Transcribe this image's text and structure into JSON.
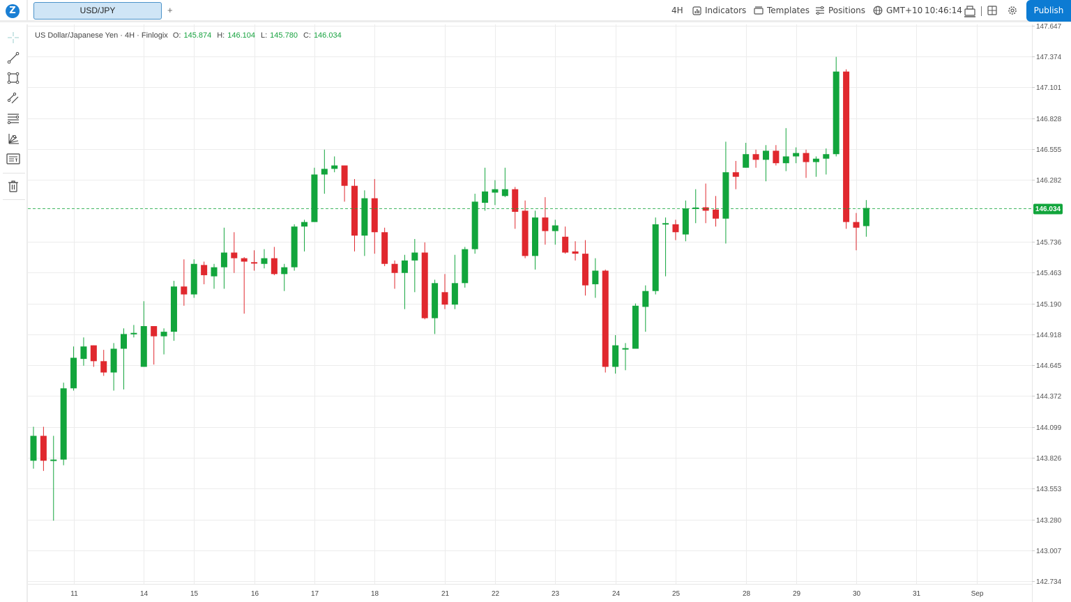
{
  "topbar": {
    "logo_letter": "Z",
    "active_tab": "USD/JPY",
    "add_tab": "+",
    "timeframe": "4H",
    "indicators": "Indicators",
    "templates": "Templates",
    "positions": "Positions",
    "timezone": "GMT+10",
    "clock": "10:46:14",
    "publish": "Publish"
  },
  "legend": {
    "title": "US Dollar/Japanese Yen · 4H · Finlogix",
    "o_label": "O:",
    "o": "145.874",
    "h_label": "H:",
    "h": "146.104",
    "l_label": "L:",
    "l": "145.780",
    "c_label": "C:",
    "c": "146.034"
  },
  "tools": [
    "crosshair-icon",
    "trend-line-icon",
    "rectangle-icon",
    "parallel-channel-icon",
    "fib-retracement-icon",
    "pitchfork-icon",
    "text-note-icon",
    "trash-icon"
  ],
  "colors": {
    "up": "#12a53c",
    "down": "#e0282e",
    "accent": "#0c7bd3"
  },
  "chart_data": {
    "type": "candlestick",
    "symbol": "USD/JPY",
    "interval": "4H",
    "ylim": [
      142.699,
      147.657
    ],
    "y_ticks": [
      "147.647",
      "147.374",
      "147.101",
      "146.828",
      "146.555",
      "146.282",
      "145.736",
      "145.463",
      "145.190",
      "144.918",
      "144.645",
      "144.372",
      "144.099",
      "143.826",
      "143.553",
      "143.280",
      "143.007",
      "142.734"
    ],
    "current_price": "146.034",
    "x_ticks": [
      {
        "label": "11",
        "bar": 4
      },
      {
        "label": "14",
        "bar": 11
      },
      {
        "label": "15",
        "bar": 16
      },
      {
        "label": "16",
        "bar": 22
      },
      {
        "label": "17",
        "bar": 28
      },
      {
        "label": "18",
        "bar": 34
      },
      {
        "label": "21",
        "bar": 41
      },
      {
        "label": "22",
        "bar": 46
      },
      {
        "label": "23",
        "bar": 52
      },
      {
        "label": "24",
        "bar": 58
      },
      {
        "label": "25",
        "bar": 64
      },
      {
        "label": "28",
        "bar": 71
      },
      {
        "label": "29",
        "bar": 76
      },
      {
        "label": "30",
        "bar": 82
      },
      {
        "label": "31",
        "bar": 88
      },
      {
        "label": "Sep",
        "bar": 94
      }
    ],
    "ohlc": [
      [
        143.8,
        144.1,
        143.73,
        144.02
      ],
      [
        144.02,
        144.1,
        143.71,
        143.8
      ],
      [
        143.8,
        144.02,
        143.27,
        143.81
      ],
      [
        143.81,
        144.49,
        143.76,
        144.44
      ],
      [
        144.44,
        144.81,
        144.42,
        144.71
      ],
      [
        144.7,
        144.89,
        144.64,
        144.81
      ],
      [
        144.82,
        144.82,
        144.63,
        144.68
      ],
      [
        144.68,
        144.78,
        144.55,
        144.58
      ],
      [
        144.58,
        144.84,
        144.42,
        144.79
      ],
      [
        144.79,
        144.97,
        144.43,
        144.92
      ],
      [
        144.92,
        145.0,
        144.89,
        144.93
      ],
      [
        144.63,
        145.21,
        144.63,
        144.99
      ],
      [
        144.99,
        144.99,
        144.65,
        144.9
      ],
      [
        144.9,
        144.97,
        144.74,
        144.94
      ],
      [
        144.94,
        145.39,
        144.86,
        145.34
      ],
      [
        145.34,
        145.58,
        145.17,
        145.27
      ],
      [
        145.27,
        145.58,
        145.24,
        145.54
      ],
      [
        145.53,
        145.56,
        145.36,
        145.44
      ],
      [
        145.43,
        145.54,
        145.32,
        145.51
      ],
      [
        145.51,
        145.86,
        145.32,
        145.64
      ],
      [
        145.64,
        145.82,
        145.46,
        145.59
      ],
      [
        145.59,
        145.6,
        145.1,
        145.56
      ],
      [
        145.555,
        145.66,
        145.48,
        145.55
      ],
      [
        145.54,
        145.67,
        145.5,
        145.59
      ],
      [
        145.59,
        145.69,
        145.44,
        145.45
      ],
      [
        145.45,
        145.54,
        145.3,
        145.51
      ],
      [
        145.51,
        145.89,
        145.48,
        145.87
      ],
      [
        145.87,
        145.93,
        145.65,
        145.91
      ],
      [
        145.91,
        146.39,
        145.91,
        146.33
      ],
      [
        146.33,
        146.55,
        146.16,
        146.38
      ],
      [
        146.38,
        146.49,
        146.35,
        146.41
      ],
      [
        146.41,
        146.41,
        146.09,
        146.23
      ],
      [
        146.23,
        146.29,
        145.65,
        145.79
      ],
      [
        145.79,
        146.19,
        145.61,
        146.12
      ],
      [
        146.12,
        146.29,
        145.63,
        145.82
      ],
      [
        145.82,
        145.86,
        145.52,
        145.54
      ],
      [
        145.54,
        145.57,
        145.32,
        145.46
      ],
      [
        145.46,
        145.62,
        145.14,
        145.57
      ],
      [
        145.57,
        145.76,
        145.29,
        145.64
      ],
      [
        145.64,
        145.73,
        145.05,
        145.06
      ],
      [
        145.06,
        145.4,
        144.92,
        145.37
      ],
      [
        145.29,
        145.45,
        145.14,
        145.18
      ],
      [
        145.18,
        145.62,
        145.14,
        145.37
      ],
      [
        145.37,
        145.69,
        145.33,
        145.67
      ],
      [
        145.67,
        146.16,
        145.63,
        146.09
      ],
      [
        146.08,
        146.39,
        146.01,
        146.18
      ],
      [
        146.17,
        146.28,
        146.06,
        146.2
      ],
      [
        146.14,
        146.39,
        146.13,
        146.2
      ],
      [
        146.2,
        146.22,
        145.85,
        146.0
      ],
      [
        146.01,
        146.1,
        145.59,
        145.61
      ],
      [
        145.61,
        146.01,
        145.49,
        145.95
      ],
      [
        145.95,
        146.13,
        145.71,
        145.83
      ],
      [
        145.83,
        145.93,
        145.71,
        145.88
      ],
      [
        145.78,
        145.87,
        145.63,
        145.64
      ],
      [
        145.65,
        145.74,
        145.57,
        145.63
      ],
      [
        145.63,
        145.75,
        145.26,
        145.35
      ],
      [
        145.36,
        145.59,
        145.24,
        145.48
      ],
      [
        145.48,
        145.49,
        144.58,
        144.63
      ],
      [
        144.63,
        144.91,
        144.57,
        144.82
      ],
      [
        144.787,
        144.84,
        144.6,
        144.795
      ],
      [
        144.79,
        145.19,
        144.79,
        145.17
      ],
      [
        145.16,
        145.35,
        144.94,
        145.3
      ],
      [
        145.3,
        145.95,
        145.27,
        145.89
      ],
      [
        145.89,
        145.95,
        145.43,
        145.9
      ],
      [
        145.89,
        145.93,
        145.75,
        145.82
      ],
      [
        145.8,
        146.1,
        145.74,
        146.03
      ],
      [
        146.033,
        146.2,
        145.9,
        146.038
      ],
      [
        146.04,
        146.25,
        145.9,
        146.01
      ],
      [
        146.02,
        146.14,
        145.87,
        145.94
      ],
      [
        145.94,
        146.62,
        145.72,
        146.35
      ],
      [
        146.35,
        146.45,
        146.2,
        146.31
      ],
      [
        146.39,
        146.61,
        146.39,
        146.51
      ],
      [
        146.51,
        146.55,
        146.39,
        146.46
      ],
      [
        146.46,
        146.59,
        146.27,
        146.54
      ],
      [
        146.54,
        146.59,
        146.41,
        146.43
      ],
      [
        146.43,
        146.74,
        146.36,
        146.49
      ],
      [
        146.49,
        146.57,
        146.43,
        146.52
      ],
      [
        146.52,
        146.55,
        146.3,
        146.44
      ],
      [
        146.44,
        146.49,
        146.31,
        146.47
      ],
      [
        146.47,
        146.56,
        146.33,
        146.51
      ],
      [
        146.51,
        147.37,
        146.49,
        147.24
      ],
      [
        147.24,
        147.26,
        145.85,
        145.91
      ],
      [
        145.91,
        145.99,
        145.66,
        145.86
      ],
      [
        145.874,
        146.104,
        145.78,
        146.034
      ]
    ]
  }
}
